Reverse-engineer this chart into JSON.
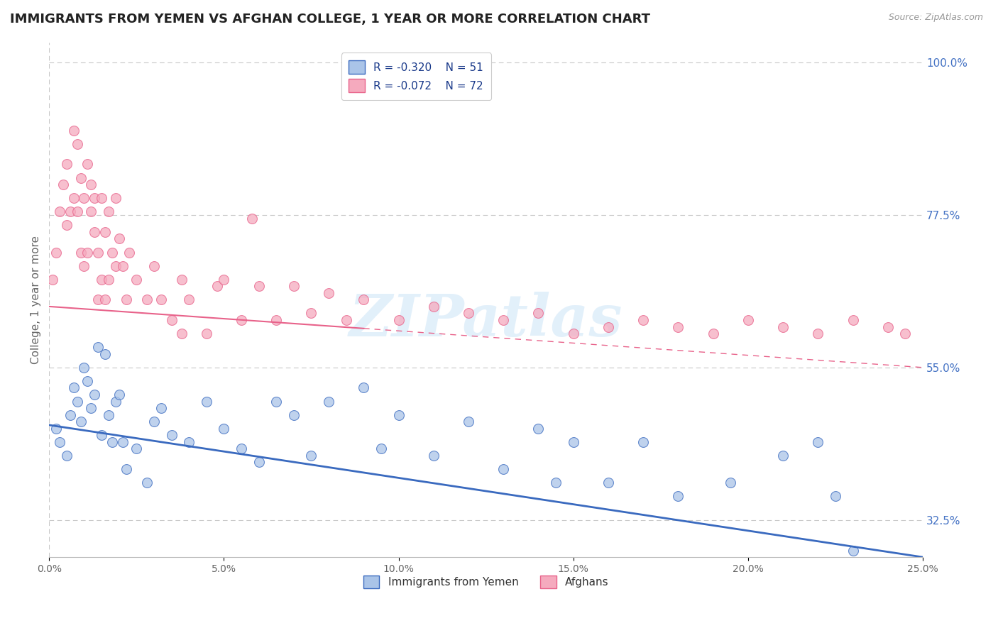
{
  "title": "IMMIGRANTS FROM YEMEN VS AFGHAN COLLEGE, 1 YEAR OR MORE CORRELATION CHART",
  "source_text": "Source: ZipAtlas.com",
  "ylabel": "College, 1 year or more",
  "series1_label": "Immigrants from Yemen",
  "series2_label": "Afghans",
  "series1_color": "#aac4e8",
  "series2_color": "#f5aabe",
  "series1_line_color": "#3a6abf",
  "series2_line_color": "#e8628a",
  "series1_R": "-0.320",
  "series1_N": "51",
  "series2_R": "-0.072",
  "series2_N": "72",
  "xlim": [
    0.0,
    25.0
  ],
  "ylim": [
    27.0,
    103.0
  ],
  "xticks": [
    0,
    5,
    10,
    15,
    20,
    25
  ],
  "ytick_right_values": [
    100.0,
    77.5,
    55.0,
    32.5
  ],
  "watermark": "ZIPatlas",
  "series1_x": [
    0.2,
    0.3,
    0.5,
    0.6,
    0.7,
    0.8,
    0.9,
    1.0,
    1.1,
    1.2,
    1.3,
    1.4,
    1.5,
    1.6,
    1.7,
    1.8,
    1.9,
    2.0,
    2.1,
    2.2,
    2.5,
    2.8,
    3.0,
    3.2,
    3.5,
    4.0,
    4.5,
    5.0,
    5.5,
    6.0,
    6.5,
    7.0,
    7.5,
    8.0,
    9.0,
    9.5,
    10.0,
    11.0,
    12.0,
    13.0,
    14.0,
    14.5,
    15.0,
    16.0,
    17.0,
    18.0,
    19.5,
    21.0,
    22.0,
    22.5,
    23.0
  ],
  "series1_y": [
    46,
    44,
    42,
    48,
    52,
    50,
    47,
    55,
    53,
    49,
    51,
    58,
    45,
    57,
    48,
    44,
    50,
    51,
    44,
    40,
    43,
    38,
    47,
    49,
    45,
    44,
    50,
    46,
    43,
    41,
    50,
    48,
    42,
    50,
    52,
    43,
    48,
    42,
    47,
    40,
    46,
    38,
    44,
    38,
    44,
    36,
    38,
    42,
    44,
    36,
    28
  ],
  "series2_x": [
    0.1,
    0.2,
    0.3,
    0.4,
    0.5,
    0.5,
    0.6,
    0.7,
    0.7,
    0.8,
    0.8,
    0.9,
    0.9,
    1.0,
    1.0,
    1.1,
    1.1,
    1.2,
    1.2,
    1.3,
    1.3,
    1.4,
    1.4,
    1.5,
    1.5,
    1.6,
    1.6,
    1.7,
    1.7,
    1.8,
    1.9,
    1.9,
    2.0,
    2.1,
    2.2,
    2.3,
    2.5,
    2.8,
    3.0,
    3.2,
    3.5,
    3.8,
    4.0,
    4.5,
    4.8,
    5.0,
    5.5,
    6.0,
    6.5,
    7.0,
    7.5,
    8.0,
    8.5,
    9.0,
    10.0,
    11.0,
    12.0,
    13.0,
    14.0,
    15.0,
    16.0,
    17.0,
    18.0,
    19.0,
    20.0,
    21.0,
    22.0,
    23.0,
    24.0,
    24.5,
    5.8,
    3.8
  ],
  "series2_y": [
    68,
    72,
    78,
    82,
    76,
    85,
    78,
    90,
    80,
    88,
    78,
    83,
    72,
    80,
    70,
    85,
    72,
    78,
    82,
    75,
    80,
    72,
    65,
    80,
    68,
    75,
    65,
    78,
    68,
    72,
    80,
    70,
    74,
    70,
    65,
    72,
    68,
    65,
    70,
    65,
    62,
    68,
    65,
    60,
    67,
    68,
    62,
    67,
    62,
    67,
    63,
    66,
    62,
    65,
    62,
    64,
    63,
    62,
    63,
    60,
    61,
    62,
    61,
    60,
    62,
    61,
    60,
    62,
    61,
    60,
    77,
    60
  ],
  "series2_solid_end_x": 9.0,
  "background_color": "#ffffff",
  "grid_color": "#c8c8c8",
  "title_fontsize": 13,
  "axis_label_fontsize": 11,
  "tick_fontsize": 10
}
